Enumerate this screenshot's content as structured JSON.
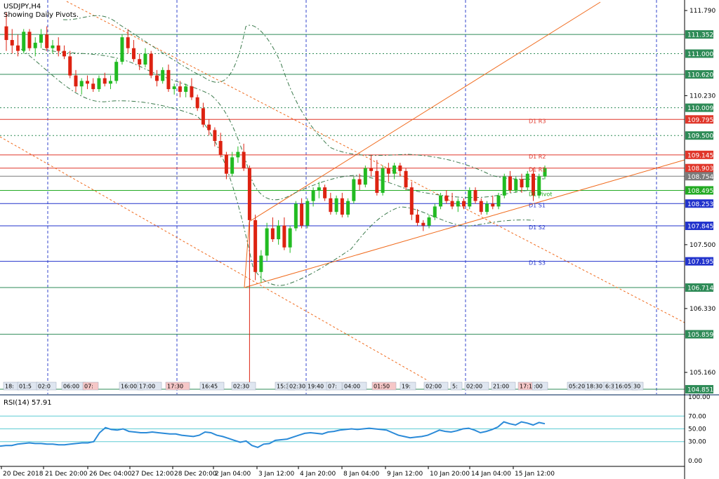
{
  "header": {
    "symbol": "USDJPY,H4",
    "subtitle": "Showing Daily Pivots."
  },
  "rsi": {
    "label": "RSI(14) 57.91",
    "levels": [
      "100.00",
      "70.00",
      "50.00",
      "30.00",
      "0.00"
    ]
  },
  "price_axis": {
    "ticks": [
      "111.790",
      "110.230",
      "107.500",
      "106.330",
      "105.160"
    ]
  },
  "x_axis": {
    "labels": [
      "20 Dec 2018",
      "21 Dec 20:00",
      "26 Dec 04:00",
      "27 Dec 12:00",
      "28 Dec 20:00",
      "2 Jan 04:00",
      "3 Jan 12:00",
      "4 Jan 20:00",
      "8 Jan 04:00",
      "9 Jan 12:00",
      "10 Jan 20:00",
      "14 Jan 04:00",
      "15 Jan 12:00"
    ]
  },
  "time_strip": [
    "18:",
    "01:5",
    "02:0",
    "06:00",
    "07:",
    "16:00",
    "17:00",
    "17:30",
    "16:45",
    "02:30",
    "15:3",
    "02:30",
    "19:40",
    "07:",
    "04:00",
    "01:50",
    "19:",
    "02:00",
    "5:",
    "02:00",
    "21:00",
    "17:19",
    ":00",
    "05:20",
    "18:30",
    "6:3",
    "16:05",
    "30"
  ],
  "price_levels": [
    {
      "price": "111.352",
      "kind": "solid",
      "color": "#2e8b57"
    },
    {
      "price": "111.000",
      "kind": "dotted",
      "color": "#2e8b57"
    },
    {
      "price": "110.620",
      "kind": "solid",
      "color": "#2e8b57"
    },
    {
      "price": "110.009",
      "kind": "dotted",
      "color": "#2e8b57"
    },
    {
      "price": "109.795",
      "kind": "solid",
      "color": "#e0362a",
      "pivot": "D1  R3"
    },
    {
      "price": "109.500",
      "kind": "dotted",
      "color": "#2e8b57"
    },
    {
      "price": "109.145",
      "kind": "solid",
      "color": "#e0362a",
      "pivot": "D1  R2"
    },
    {
      "price": "108.903",
      "kind": "solid",
      "color": "#e0362a",
      "pivot": "D1  R1"
    },
    {
      "price": "108.754",
      "kind": "solid",
      "color": "#7a7a7a"
    },
    {
      "price": "108.495",
      "kind": "solid",
      "color": "#22aa22",
      "pivot": "D1 Pivot"
    },
    {
      "price": "108.253",
      "kind": "solid",
      "color": "#2233cc",
      "pivot": "D1  S1"
    },
    {
      "price": "107.845",
      "kind": "solid",
      "color": "#2233cc",
      "pivot": "D1  S2"
    },
    {
      "price": "107.195",
      "kind": "solid",
      "color": "#2233cc",
      "pivot": "D1  S3"
    },
    {
      "price": "106.714",
      "kind": "solid",
      "color": "#2e8b57"
    },
    {
      "price": "105.859",
      "kind": "solid",
      "color": "#2e8b57"
    },
    {
      "price": "104.851",
      "kind": "solid",
      "color": "#2e8b57"
    }
  ],
  "colors": {
    "bull": "#22bb22",
    "bear": "#dd2211",
    "grid": "#3344cc",
    "trend": "#f06a1c",
    "rsi_line": "#2a8ad8",
    "rsi_level": "#5ecbd3",
    "envelope": "#3b7a4c"
  },
  "chart_data": {
    "type": "candlestick",
    "y_range": [
      104.85,
      111.8
    ],
    "candles": [
      [
        111.5,
        111.75,
        111.05,
        111.25
      ],
      [
        111.25,
        111.45,
        111.0,
        111.15
      ],
      [
        111.15,
        111.35,
        110.95,
        111.05
      ],
      [
        111.05,
        111.45,
        111.0,
        111.4
      ],
      [
        111.4,
        111.45,
        111.05,
        111.1
      ],
      [
        111.1,
        111.3,
        110.95,
        111.2
      ],
      [
        111.2,
        111.45,
        111.1,
        111.35
      ],
      [
        111.35,
        111.5,
        111.05,
        111.1
      ],
      [
        111.1,
        111.25,
        111.0,
        111.15
      ],
      [
        111.15,
        111.3,
        110.95,
        111.05
      ],
      [
        111.05,
        111.15,
        110.9,
        110.95
      ],
      [
        110.95,
        111.05,
        110.55,
        110.6
      ],
      [
        110.6,
        110.7,
        110.3,
        110.4
      ],
      [
        110.4,
        110.55,
        110.25,
        110.5
      ],
      [
        110.5,
        110.6,
        110.35,
        110.45
      ],
      [
        110.45,
        110.55,
        110.3,
        110.35
      ],
      [
        110.35,
        110.6,
        110.3,
        110.55
      ],
      [
        110.55,
        110.65,
        110.4,
        110.45
      ],
      [
        110.45,
        110.6,
        110.35,
        110.5
      ],
      [
        110.5,
        110.9,
        110.45,
        110.85
      ],
      [
        110.85,
        111.35,
        110.8,
        111.3
      ],
      [
        111.3,
        111.45,
        111.0,
        111.1
      ],
      [
        111.1,
        111.25,
        110.85,
        110.9
      ],
      [
        110.9,
        111.0,
        110.7,
        110.8
      ],
      [
        110.8,
        111.1,
        110.75,
        111.0
      ],
      [
        111.0,
        111.05,
        110.55,
        110.6
      ],
      [
        110.6,
        110.7,
        110.4,
        110.5
      ],
      [
        110.5,
        110.75,
        110.45,
        110.7
      ],
      [
        110.7,
        110.8,
        110.3,
        110.35
      ],
      [
        110.35,
        110.45,
        110.25,
        110.4
      ],
      [
        110.4,
        110.5,
        110.2,
        110.3
      ],
      [
        110.3,
        110.45,
        110.2,
        110.4
      ],
      [
        110.4,
        110.55,
        110.15,
        110.2
      ],
      [
        110.2,
        110.25,
        109.95,
        110.0
      ],
      [
        110.0,
        110.1,
        109.65,
        109.7
      ],
      [
        109.7,
        109.8,
        109.5,
        109.6
      ],
      [
        109.6,
        109.65,
        109.3,
        109.4
      ],
      [
        109.4,
        109.55,
        109.1,
        109.15
      ],
      [
        109.15,
        109.2,
        108.7,
        108.8
      ],
      [
        108.8,
        109.2,
        108.75,
        109.1
      ],
      [
        109.1,
        109.3,
        109.0,
        109.2
      ],
      [
        109.2,
        109.35,
        108.85,
        108.9
      ],
      [
        108.9,
        108.95,
        104.85,
        107.95
      ],
      [
        107.95,
        108.05,
        106.85,
        107.0
      ],
      [
        107.0,
        107.4,
        106.8,
        107.3
      ],
      [
        107.3,
        107.9,
        107.2,
        107.8
      ],
      [
        107.8,
        108.0,
        107.55,
        107.6
      ],
      [
        107.6,
        107.95,
        107.5,
        107.85
      ],
      [
        107.85,
        108.0,
        107.4,
        107.45
      ],
      [
        107.45,
        107.85,
        107.35,
        107.8
      ],
      [
        107.8,
        108.3,
        107.75,
        108.25
      ],
      [
        108.25,
        108.35,
        107.8,
        107.85
      ],
      [
        107.85,
        108.35,
        107.8,
        108.3
      ],
      [
        108.3,
        108.55,
        108.2,
        108.5
      ],
      [
        108.5,
        108.65,
        108.35,
        108.55
      ],
      [
        108.55,
        108.6,
        108.3,
        108.35
      ],
      [
        108.35,
        108.45,
        108.05,
        108.1
      ],
      [
        108.1,
        108.4,
        108.05,
        108.35
      ],
      [
        108.35,
        108.45,
        108.0,
        108.05
      ],
      [
        108.05,
        108.35,
        108.0,
        108.3
      ],
      [
        108.3,
        108.75,
        108.25,
        108.7
      ],
      [
        108.7,
        108.8,
        108.5,
        108.6
      ],
      [
        108.6,
        108.95,
        108.55,
        108.9
      ],
      [
        108.9,
        109.15,
        108.75,
        108.85
      ],
      [
        108.85,
        109.05,
        108.4,
        108.45
      ],
      [
        108.45,
        108.95,
        108.4,
        108.9
      ],
      [
        108.9,
        109.0,
        108.65,
        108.8
      ],
      [
        108.8,
        109.0,
        108.7,
        108.95
      ],
      [
        108.95,
        109.0,
        108.75,
        108.85
      ],
      [
        108.85,
        108.9,
        108.5,
        108.55
      ],
      [
        108.55,
        108.65,
        107.95,
        108.05
      ],
      [
        108.05,
        108.15,
        107.85,
        107.9
      ],
      [
        107.9,
        107.95,
        107.75,
        107.85
      ],
      [
        107.85,
        108.05,
        107.8,
        108.0
      ],
      [
        108.0,
        108.25,
        107.95,
        108.2
      ],
      [
        108.2,
        108.45,
        108.15,
        108.4
      ],
      [
        108.4,
        108.5,
        108.25,
        108.3
      ],
      [
        108.3,
        108.45,
        108.15,
        108.2
      ],
      [
        108.2,
        108.35,
        108.1,
        108.3
      ],
      [
        108.3,
        108.35,
        108.15,
        108.2
      ],
      [
        108.2,
        108.55,
        108.15,
        108.5
      ],
      [
        108.5,
        108.55,
        108.25,
        108.3
      ],
      [
        108.3,
        108.35,
        108.05,
        108.1
      ],
      [
        108.1,
        108.3,
        108.05,
        108.25
      ],
      [
        108.25,
        108.4,
        108.15,
        108.2
      ],
      [
        108.2,
        108.45,
        108.15,
        108.4
      ],
      [
        108.4,
        108.8,
        108.35,
        108.75
      ],
      [
        108.75,
        108.85,
        108.45,
        108.5
      ],
      [
        108.5,
        108.75,
        108.45,
        108.7
      ],
      [
        108.7,
        108.8,
        108.45,
        108.55
      ],
      [
        108.55,
        108.85,
        108.5,
        108.8
      ],
      [
        108.8,
        108.9,
        108.3,
        108.4
      ],
      [
        108.4,
        108.8,
        108.35,
        108.75
      ],
      [
        108.75,
        108.95,
        108.7,
        108.9
      ]
    ],
    "rsi": [
      23,
      24,
      24,
      26,
      27,
      28,
      27,
      27,
      26,
      26,
      25,
      25,
      26,
      27,
      28,
      28,
      30,
      44,
      52,
      49,
      48,
      50,
      46,
      45,
      44,
      44,
      45,
      44,
      43,
      42,
      42,
      40,
      39,
      38,
      40,
      45,
      44,
      40,
      38,
      35,
      32,
      29,
      31,
      24,
      21,
      26,
      27,
      32,
      33,
      34,
      37,
      40,
      43,
      44,
      43,
      42,
      45,
      46,
      48,
      49,
      50,
      49,
      50,
      51,
      50,
      49,
      48,
      44,
      40,
      38,
      36,
      37,
      38,
      40,
      44,
      48,
      46,
      45,
      47,
      50,
      51,
      48,
      44,
      46,
      49,
      53,
      61,
      58,
      56,
      61,
      59,
      56,
      60,
      58
    ]
  }
}
